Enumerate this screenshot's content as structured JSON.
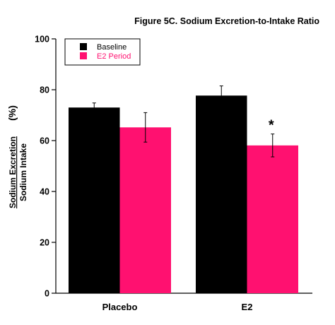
{
  "chart_data": {
    "type": "bar",
    "title": "Figure 5C.  Sodium Excretion-to-Intake Ratio",
    "ylabel_numerator": "Sodium Excretion",
    "ylabel_denominator": "Sodium Intake",
    "ylabel_unit": "(%)",
    "xlabel": "",
    "categories": [
      "Placebo",
      "E2"
    ],
    "ylim": [
      0,
      100
    ],
    "yticks": [
      0,
      20,
      40,
      60,
      80,
      100
    ],
    "series": [
      {
        "name": "Baseline",
        "color": "#000000",
        "values": [
          73,
          77.7
        ],
        "errors": [
          1.8,
          3.8
        ]
      },
      {
        "name": "E2 Period",
        "color": "#ff1170",
        "values": [
          65.2,
          58.1
        ],
        "errors": [
          5.8,
          4.5
        ]
      }
    ],
    "annotations": [
      {
        "text": "*",
        "category": "E2",
        "series": "E2 Period"
      }
    ],
    "legend_position": "top-left",
    "grid": false
  }
}
